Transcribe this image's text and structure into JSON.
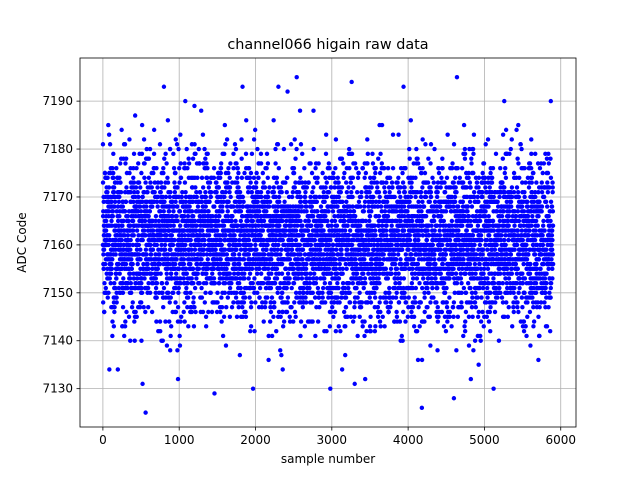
{
  "chart_data": {
    "type": "scatter",
    "title": "channel066 higain raw data",
    "xlabel": "sample number",
    "ylabel": "ADC Code",
    "xlim": [
      -300,
      6200
    ],
    "ylim": [
      7122,
      7199
    ],
    "x_ticks": [
      0,
      1000,
      2000,
      3000,
      4000,
      5000,
      6000
    ],
    "y_ticks": [
      7130,
      7140,
      7150,
      7160,
      7170,
      7180,
      7190
    ],
    "grid": true,
    "color": "#0000ff",
    "series": [
      {
        "x_range": [
          0,
          5900
        ],
        "n_points": 6000,
        "center": 7161,
        "spread_sd": 8.5,
        "outliers": [
          [
            560,
            7125
          ],
          [
            800,
            7193
          ],
          [
            1080,
            7190
          ],
          [
            1200,
            7189
          ],
          [
            1830,
            7193
          ],
          [
            2300,
            7193
          ],
          [
            2420,
            7192
          ],
          [
            2540,
            7195
          ],
          [
            2760,
            7188
          ],
          [
            2980,
            7130
          ],
          [
            3260,
            7194
          ],
          [
            3300,
            7131
          ],
          [
            3940,
            7193
          ],
          [
            4180,
            7126
          ],
          [
            4600,
            7128
          ],
          [
            4640,
            7195
          ],
          [
            5120,
            7130
          ],
          [
            5260,
            7190
          ],
          [
            5870,
            7190
          ],
          [
            520,
            7131
          ]
        ]
      }
    ]
  }
}
